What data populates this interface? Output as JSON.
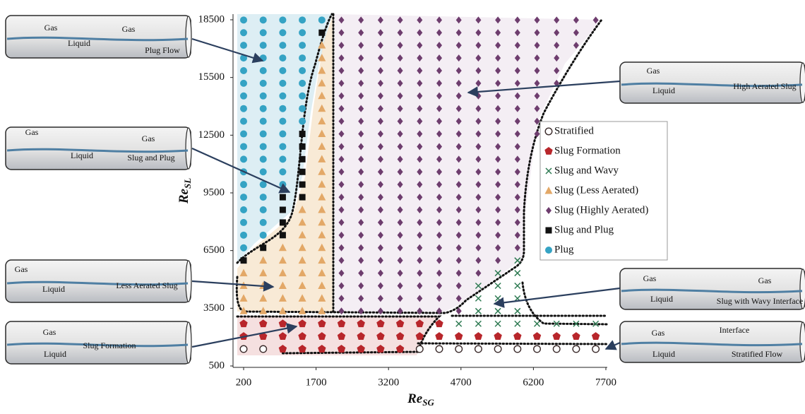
{
  "chart_data": {
    "type": "scatter",
    "x_label": {
      "main": "Re",
      "sub": "SG"
    },
    "y_label": {
      "main": "Re",
      "sub": "SL"
    },
    "xlim": [
      200,
      7700
    ],
    "xticks": [
      200,
      1700,
      3200,
      4700,
      6200,
      7700
    ],
    "ylim": [
      500,
      18500
    ],
    "yticks": [
      500,
      3500,
      6500,
      9500,
      12500,
      15500,
      18500
    ],
    "legend": "center-right",
    "series": [
      {
        "name": "Stratified",
        "color": "#ffffff",
        "marker": "circle-open",
        "x": [
          200,
          605,
          3845,
          4250,
          4655,
          5060,
          5465,
          5870,
          6275,
          6680,
          7085,
          7490
        ],
        "values": [
          1380,
          1380,
          1380,
          1380,
          1380,
          1380,
          1380,
          1380,
          1380,
          1380,
          1380,
          1380
        ]
      },
      {
        "name": "Slug Formation",
        "color": "#b8262b",
        "marker": "pentagon",
        "x": [
          1010,
          1415,
          1820,
          2225,
          2630,
          3035,
          3440,
          200,
          605,
          1010,
          1415,
          1820,
          2225,
          2630,
          3035,
          3440,
          3845,
          4250,
          4655,
          5060,
          5465,
          5870,
          6275,
          6680,
          7085,
          7490,
          200,
          605,
          1010,
          1415,
          1820,
          2225,
          2630,
          3035,
          3440,
          3845,
          4250
        ],
        "values": [
          1380,
          1380,
          1380,
          1380,
          1380,
          1380,
          1380,
          2038,
          2038,
          2038,
          2038,
          2038,
          2038,
          2038,
          2038,
          2038,
          2038,
          2038,
          2038,
          2038,
          2038,
          2038,
          2038,
          2038,
          2038,
          2038,
          2696,
          2696,
          2696,
          2696,
          2696,
          2696,
          2696,
          2696,
          2696,
          2696,
          2696
        ]
      },
      {
        "name": "Slug and Wavy",
        "color": "#2e7a52",
        "marker": "x",
        "x": [
          4655,
          5060,
          5465,
          5870,
          6275,
          6680,
          7085,
          7490,
          5060,
          5465,
          5870,
          5060,
          5465,
          5870,
          5060,
          5465,
          5870,
          5465,
          5870,
          5870
        ],
        "values": [
          2696,
          2696,
          2696,
          2696,
          2696,
          2696,
          2696,
          2696,
          3354,
          3354,
          3354,
          4012,
          4012,
          4012,
          4670,
          4670,
          4670,
          5328,
          5328,
          5986
        ]
      },
      {
        "name": "Slug (Less Aerated)",
        "color": "#e3a867",
        "marker": "triangle",
        "x": [
          200,
          200,
          200,
          200,
          605,
          605,
          605,
          605,
          605,
          1010,
          1010,
          1010,
          1010,
          1010,
          1010,
          1415,
          1415,
          1415,
          1415,
          1415,
          1415,
          1415,
          1415,
          1415,
          1820,
          1820,
          1820,
          1820,
          1820,
          1820,
          1820,
          1820,
          1820,
          1820,
          1820,
          1820,
          1820,
          1820,
          1820,
          1820,
          1820,
          1820,
          1820,
          1820,
          1820,
          1820
        ],
        "values": [
          3354,
          4012,
          4670,
          5328,
          3354,
          4012,
          4670,
          5328,
          5986,
          3354,
          4012,
          4670,
          5328,
          5986,
          6644,
          3354,
          4012,
          4670,
          5328,
          5986,
          6644,
          7302,
          7960,
          8618,
          3354,
          4012,
          4670,
          5328,
          5986,
          6644,
          7302,
          7960,
          8618,
          9276,
          9934,
          10592,
          11250,
          11908,
          12566,
          13224,
          13882,
          14540,
          15198,
          15856,
          16514,
          17172
        ]
      },
      {
        "name": "Slug (Highly Aerated)",
        "color": "#6e3d6e",
        "marker": "diamond",
        "x": [
          2225,
          2630,
          3035,
          3440,
          3845,
          4250,
          4655,
          2225,
          2630,
          3035,
          3440,
          3845,
          4250,
          4655,
          2225,
          2630,
          3035,
          3440,
          3845,
          4250,
          4655,
          2225,
          2630,
          3035,
          3440,
          3845,
          4250,
          4655,
          5060,
          2225,
          2630,
          3035,
          3440,
          3845,
          4250,
          4655,
          5060,
          5465,
          2225,
          2630,
          3035,
          3440,
          3845,
          4250,
          4655,
          5060,
          5465,
          5870,
          2225,
          2630,
          3035,
          3440,
          3845,
          4250,
          4655,
          5060,
          5465,
          5870,
          2225,
          2630,
          3035,
          3440,
          3845,
          4250,
          4655,
          5060,
          5465,
          5870,
          2225,
          2630,
          3035,
          3440,
          3845,
          4250,
          4655,
          5060,
          5465,
          5870,
          2225,
          2630,
          3035,
          3440,
          3845,
          4250,
          4655,
          5060,
          5465,
          5870,
          2225,
          2630,
          3035,
          3440,
          3845,
          4250,
          4655,
          5060,
          5465,
          5870,
          2225,
          2630,
          3035,
          3440,
          3845,
          4250,
          4655,
          5060,
          5465,
          5870,
          2225,
          2630,
          3035,
          3440,
          3845,
          4250,
          4655,
          5060,
          5465,
          5870,
          2225,
          2630,
          3035,
          3440,
          3845,
          4250,
          4655,
          5060,
          5465,
          5870,
          2225,
          2630,
          3035,
          3440,
          3845,
          4250,
          4655,
          5060,
          5465,
          5870,
          6275,
          2225,
          2630,
          3035,
          3440,
          3845,
          4250,
          4655,
          5060,
          5465,
          5870,
          6275,
          2225,
          2630,
          3035,
          3440,
          3845,
          4250,
          4655,
          5060,
          5465,
          5870,
          6275,
          2225,
          2630,
          3035,
          3440,
          3845,
          4250,
          4655,
          5060,
          5465,
          5870,
          6275,
          2225,
          2630,
          3035,
          3440,
          3845,
          4250,
          4655,
          5060,
          5465,
          5870,
          6275,
          6680,
          2225,
          2630,
          3035,
          3440,
          3845,
          4250,
          4655,
          5060,
          5465,
          5870,
          6275,
          6680,
          2225,
          2630,
          3035,
          3440,
          3845,
          4250,
          4655,
          5060,
          5465,
          5870,
          6275,
          6680,
          2225,
          2630,
          3035,
          3440,
          3845,
          4250,
          4655,
          5060,
          5465,
          5870,
          6275,
          6680,
          7085,
          2225,
          2630,
          3035,
          3440,
          3845,
          4250,
          4655,
          5060,
          5465,
          5870,
          6275,
          6680,
          7085,
          2225,
          2630,
          3035,
          3440,
          3845,
          4250,
          4655,
          5060,
          5465,
          5870,
          6275,
          6680,
          7085,
          7490
        ],
        "values": [
          3354,
          3354,
          3354,
          3354,
          3354,
          3354,
          3354,
          4012,
          4012,
          4012,
          4012,
          4012,
          4012,
          4012,
          4670,
          4670,
          4670,
          4670,
          4670,
          4670,
          4670,
          5328,
          5328,
          5328,
          5328,
          5328,
          5328,
          5328,
          5328,
          5986,
          5986,
          5986,
          5986,
          5986,
          5986,
          5986,
          5986,
          5986,
          6644,
          6644,
          6644,
          6644,
          6644,
          6644,
          6644,
          6644,
          6644,
          6644,
          7302,
          7302,
          7302,
          7302,
          7302,
          7302,
          7302,
          7302,
          7302,
          7302,
          7960,
          7960,
          7960,
          7960,
          7960,
          7960,
          7960,
          7960,
          7960,
          7960,
          8618,
          8618,
          8618,
          8618,
          8618,
          8618,
          8618,
          8618,
          8618,
          8618,
          9276,
          9276,
          9276,
          9276,
          9276,
          9276,
          9276,
          9276,
          9276,
          9276,
          9934,
          9934,
          9934,
          9934,
          9934,
          9934,
          9934,
          9934,
          9934,
          9934,
          10592,
          10592,
          10592,
          10592,
          10592,
          10592,
          10592,
          10592,
          10592,
          10592,
          11250,
          11250,
          11250,
          11250,
          11250,
          11250,
          11250,
          11250,
          11250,
          11250,
          11908,
          11908,
          11908,
          11908,
          11908,
          11908,
          11908,
          11908,
          11908,
          11908,
          12566,
          12566,
          12566,
          12566,
          12566,
          12566,
          12566,
          12566,
          12566,
          12566,
          12566,
          13224,
          13224,
          13224,
          13224,
          13224,
          13224,
          13224,
          13224,
          13224,
          13224,
          13224,
          13882,
          13882,
          13882,
          13882,
          13882,
          13882,
          13882,
          13882,
          13882,
          13882,
          13882,
          14540,
          14540,
          14540,
          14540,
          14540,
          14540,
          14540,
          14540,
          14540,
          14540,
          14540,
          15198,
          15198,
          15198,
          15198,
          15198,
          15198,
          15198,
          15198,
          15198,
          15198,
          15198,
          15198,
          15856,
          15856,
          15856,
          15856,
          15856,
          15856,
          15856,
          15856,
          15856,
          15856,
          15856,
          15856,
          16514,
          16514,
          16514,
          16514,
          16514,
          16514,
          16514,
          16514,
          16514,
          16514,
          16514,
          16514,
          17172,
          17172,
          17172,
          17172,
          17172,
          17172,
          17172,
          17172,
          17172,
          17172,
          17172,
          17172,
          17172,
          17830,
          17830,
          17830,
          17830,
          17830,
          17830,
          17830,
          17830,
          17830,
          17830,
          17830,
          17830,
          17830,
          18488,
          18488,
          18488,
          18488,
          18488,
          18488,
          18488,
          18488,
          18488,
          18488,
          18488,
          18488,
          18488,
          18488
        ]
      },
      {
        "name": "Slug and Plug",
        "color": "#111111",
        "marker": "square",
        "x": [
          200,
          605,
          1010,
          1010,
          1010,
          1010,
          1415,
          1415,
          1415,
          1415,
          1415,
          1415,
          1820
        ],
        "values": [
          5986,
          6644,
          7302,
          7960,
          8618,
          9276,
          9276,
          9934,
          10592,
          11250,
          11908,
          12566,
          17830
        ]
      },
      {
        "name": "Plug",
        "color": "#35a3c4",
        "marker": "circle",
        "x": [
          200,
          200,
          200,
          200,
          200,
          200,
          200,
          200,
          200,
          200,
          200,
          200,
          200,
          200,
          200,
          200,
          200,
          200,
          200,
          605,
          605,
          605,
          605,
          605,
          605,
          605,
          605,
          605,
          605,
          605,
          605,
          605,
          605,
          605,
          605,
          605,
          605,
          1010,
          1010,
          1010,
          1010,
          1010,
          1010,
          1010,
          1010,
          1010,
          1010,
          1010,
          1010,
          1010,
          1010,
          1415,
          1415,
          1415,
          1415,
          1415,
          1415,
          1415,
          1415,
          1415,
          1820
        ],
        "values": [
          6644,
          7302,
          7960,
          8618,
          9276,
          9934,
          10592,
          11250,
          11908,
          12566,
          13224,
          13882,
          14540,
          15198,
          15856,
          16514,
          17172,
          17830,
          18488,
          7302,
          7960,
          8618,
          9276,
          9934,
          10592,
          11250,
          11908,
          12566,
          13224,
          13882,
          14540,
          15198,
          15856,
          16514,
          17172,
          17830,
          18488,
          9934,
          10592,
          11250,
          11908,
          12566,
          13224,
          13882,
          14540,
          15198,
          15856,
          16514,
          17172,
          17830,
          18488,
          13224,
          13882,
          14540,
          15198,
          15856,
          16514,
          17172,
          17830,
          18488,
          18488
        ]
      }
    ],
    "diagrams": [
      [
        "Gas",
        "Gas",
        "Liquid",
        "Plug Flow"
      ],
      [
        "Gas",
        "Gas",
        "Liquid",
        "Slug and Plug"
      ],
      [
        "Gas",
        "Liquid",
        "Less Aerated Slug"
      ],
      [
        "Gas",
        "Liquid",
        "Slug Formation"
      ],
      [
        "Gas",
        "Liquid",
        "High Aerated Slug"
      ],
      [
        "Gas",
        "Gas",
        "Liquid",
        "Slug with Wavy Interface"
      ],
      [
        "Gas",
        "Interface",
        "Liquid",
        "Stratified Flow"
      ]
    ]
  }
}
